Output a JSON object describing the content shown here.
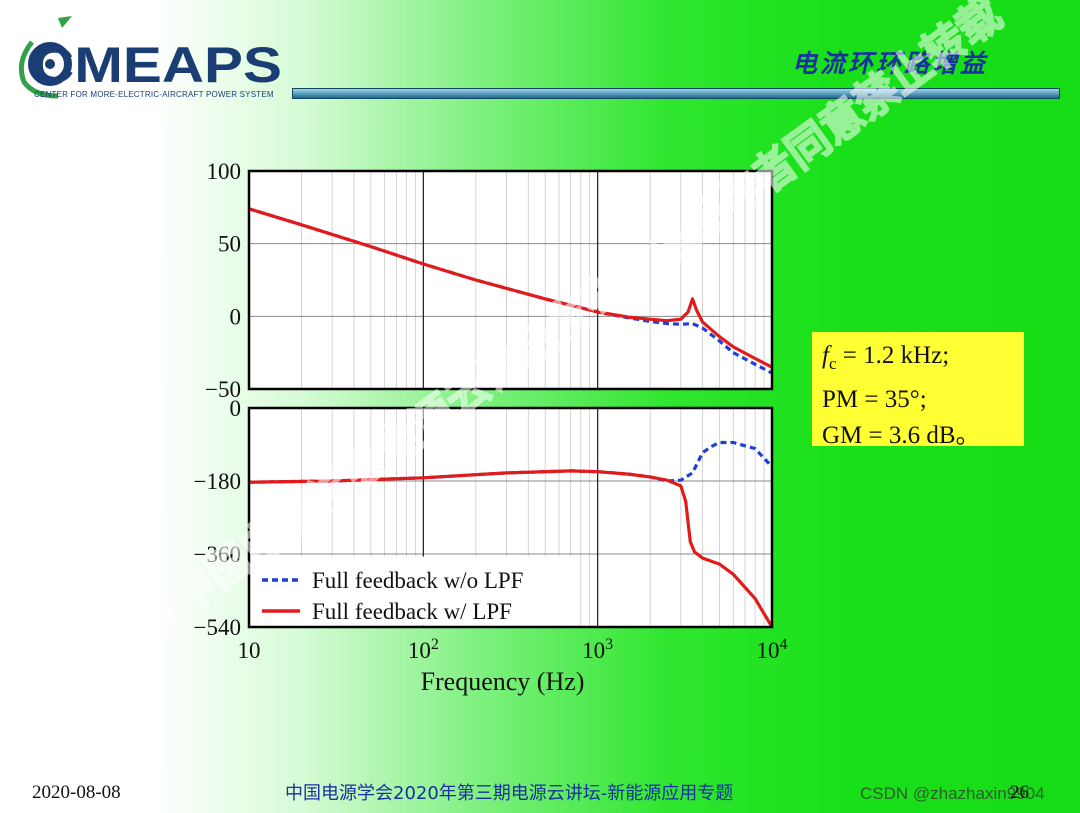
{
  "header": {
    "logo_text": "CMEAPS",
    "logo_subtitle": "CENTER FOR MORE-ELECTRIC-AIRCRAFT POWER SYSTEM",
    "slide_title": "电流环环路增益"
  },
  "info_box": {
    "line1_var": "f",
    "line1_sub": "c",
    "line1_rest": " = 1.2 kHz;",
    "line2": "PM = 35°;",
    "line3": "GM = 3.6 dB。"
  },
  "footer": {
    "date": "2020-08-08",
    "center": "中国电源学会2020年第三期电源云讲坛-新能源应用专题",
    "page": "26",
    "site_watermark": "CSDN @zhazhaxin9904"
  },
  "watermark": "作者授权中国电源学会电源云讲坛发布，未经作者同意禁止转载",
  "chart_data": {
    "type": "line",
    "xlabel": "Frequency (Hz)",
    "x_scale": "log",
    "xlim": [
      10,
      10000
    ],
    "x_ticks": [
      10,
      100,
      1000,
      10000
    ],
    "x_tick_labels": [
      {
        "base": "10",
        "exp": ""
      },
      {
        "base": "10",
        "exp": "2"
      },
      {
        "base": "10",
        "exp": "3"
      },
      {
        "base": "10",
        "exp": "4"
      }
    ],
    "legend": {
      "placement": "bottom-left of phase plot",
      "entries": [
        "Full feedback w/o LPF",
        "Full feedback w/ LPF"
      ]
    },
    "magnitude": {
      "ylim": [
        -50,
        100
      ],
      "y_ticks": [
        100,
        50,
        0,
        -50
      ],
      "y_tick_labels": [
        "100",
        "50",
        "0",
        "−50"
      ],
      "series": [
        {
          "name": "Full feedback w/o LPF",
          "color": "#1f3fd6",
          "dash": true,
          "x": [
            10,
            20,
            50,
            100,
            200,
            500,
            1000,
            1500,
            2000,
            2500,
            3000,
            3500,
            4000,
            5000,
            6000,
            8000,
            10000
          ],
          "y": [
            74,
            63,
            48,
            36,
            25,
            12,
            3,
            -1,
            -3.5,
            -5,
            -5.5,
            -5,
            -8,
            -17,
            -25,
            -33,
            -39
          ]
        },
        {
          "name": "Full feedback w/ LPF",
          "color": "#e21a1a",
          "dash": false,
          "x": [
            10,
            20,
            50,
            100,
            200,
            500,
            1000,
            1500,
            2000,
            2500,
            3000,
            3300,
            3500,
            3700,
            4000,
            5000,
            6000,
            8000,
            10000
          ],
          "y": [
            74,
            63,
            48,
            36,
            25,
            12,
            3,
            -0.5,
            -2,
            -3,
            -2,
            3,
            12,
            4,
            -4,
            -14,
            -21,
            -29,
            -35
          ]
        }
      ]
    },
    "phase": {
      "ylim": [
        -540,
        0
      ],
      "y_ticks": [
        0,
        -180,
        -360,
        -540
      ],
      "y_tick_labels": [
        "0",
        "−180",
        "−360",
        "−540"
      ],
      "series": [
        {
          "name": "Full feedback w/o LPF",
          "color": "#1f3fd6",
          "dash": true,
          "x": [
            10,
            30,
            100,
            300,
            700,
            1000,
            1500,
            2000,
            2500,
            3000,
            3500,
            4000,
            4500,
            5000,
            6000,
            8000,
            10000
          ],
          "y": [
            -183,
            -180,
            -172,
            -160,
            -155,
            -157,
            -163,
            -170,
            -180,
            -178,
            -160,
            -110,
            -95,
            -85,
            -85,
            -100,
            -145
          ]
        },
        {
          "name": "Full feedback w/ LPF",
          "color": "#e21a1a",
          "dash": false,
          "x": [
            10,
            30,
            100,
            300,
            700,
            1000,
            1500,
            2000,
            2500,
            3000,
            3200,
            3400,
            3600,
            4000,
            5000,
            6000,
            8000,
            10000
          ],
          "y": [
            -183,
            -180,
            -172,
            -160,
            -155,
            -157,
            -163,
            -170,
            -178,
            -192,
            -230,
            -330,
            -355,
            -370,
            -385,
            -410,
            -470,
            -540
          ]
        }
      ]
    }
  }
}
